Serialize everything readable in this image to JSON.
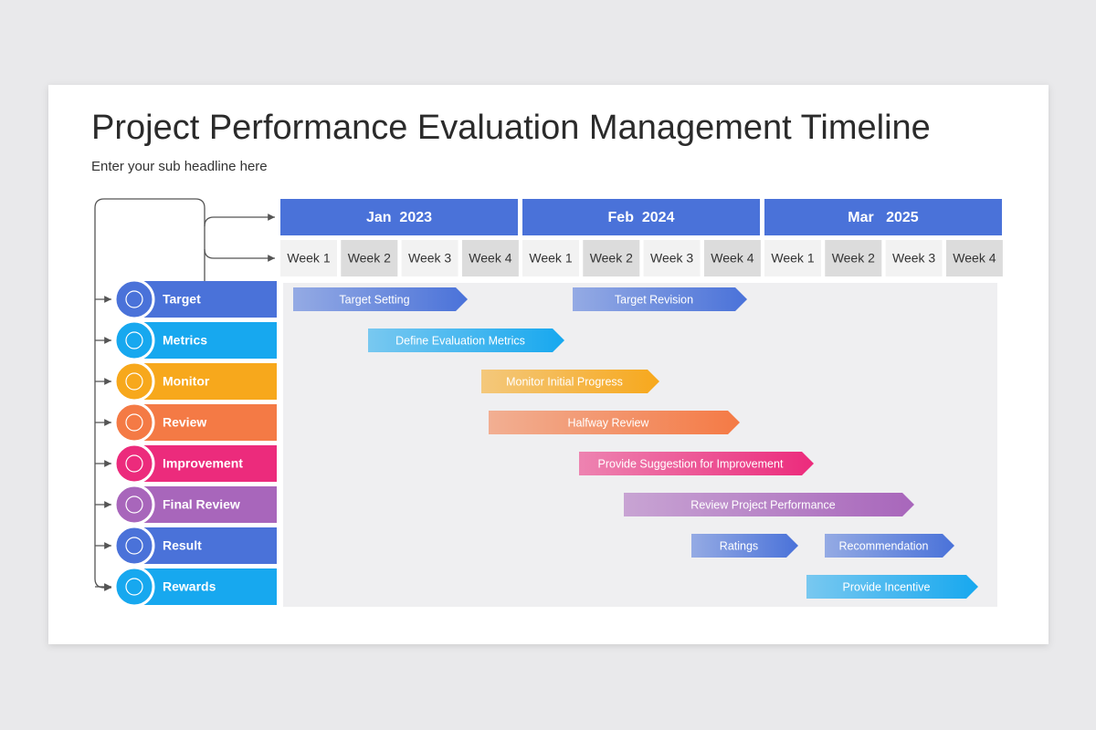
{
  "header": {
    "title": "Project Performance Evaluation Management Timeline",
    "subtitle": "Enter your sub headline here"
  },
  "months": [
    {
      "label": "Jan  2023",
      "weeks": [
        "Week 1",
        "Week 2",
        "Week 3",
        "Week 4"
      ]
    },
    {
      "label": "Feb  2024",
      "weeks": [
        "Week 1",
        "Week 2",
        "Week 3",
        "Week 4"
      ]
    },
    {
      "label": "Mar   2025",
      "weeks": [
        "Week 1",
        "Week 2",
        "Week 3",
        "Week 4"
      ]
    }
  ],
  "rows": [
    {
      "label": "Target",
      "tasks": [
        "Target Setting",
        "Target Revision"
      ]
    },
    {
      "label": "Metrics",
      "tasks": [
        "Define Evaluation Metrics"
      ]
    },
    {
      "label": "Monitor",
      "tasks": [
        "Monitor Initial Progress"
      ]
    },
    {
      "label": "Review",
      "tasks": [
        "Halfway Review"
      ]
    },
    {
      "label": "Improvement",
      "tasks": [
        "Provide Suggestion for Improvement"
      ]
    },
    {
      "label": "Final Review",
      "tasks": [
        "Review Project Performance"
      ]
    },
    {
      "label": "Result",
      "tasks": [
        "Ratings",
        "Recommendation"
      ]
    },
    {
      "label": "Rewards",
      "tasks": [
        "Provide Incentive"
      ]
    }
  ]
}
